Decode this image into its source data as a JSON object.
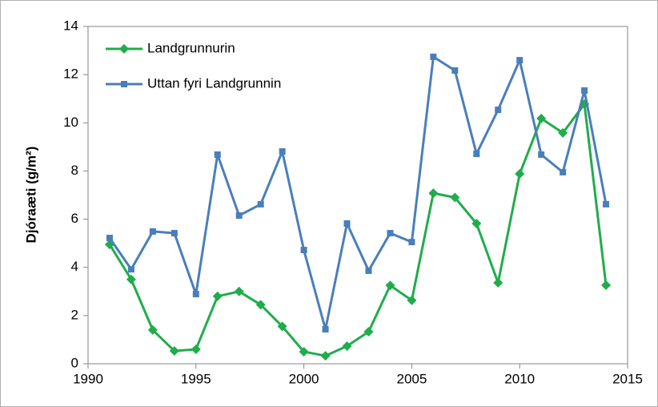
{
  "chart_data": {
    "type": "line",
    "y_label": "Djóraæti (g/m²)",
    "x": [
      1991,
      1992,
      1993,
      1994,
      1995,
      1996,
      1997,
      1998,
      1999,
      2000,
      2001,
      2002,
      2003,
      2004,
      2005,
      2006,
      2007,
      2008,
      2009,
      2010,
      2011,
      2012,
      2013,
      2014
    ],
    "series": [
      {
        "name": "Landgrunnurin",
        "color": "#1fad4b",
        "marker": "diamond",
        "values": [
          4.95,
          3.5,
          1.4,
          0.53,
          0.6,
          2.8,
          3.0,
          2.45,
          1.55,
          0.5,
          0.33,
          0.73,
          1.33,
          3.25,
          2.63,
          7.08,
          6.9,
          5.82,
          3.36,
          7.88,
          10.18,
          9.58,
          10.78,
          3.26
        ]
      },
      {
        "name": "Uttan fyri Landgrunnin",
        "color": "#4a7ebb",
        "marker": "square",
        "values": [
          5.22,
          3.92,
          5.49,
          5.42,
          2.89,
          8.68,
          6.15,
          6.62,
          8.81,
          4.72,
          1.43,
          5.82,
          3.86,
          5.42,
          5.05,
          12.74,
          12.17,
          8.71,
          10.54,
          12.6,
          8.68,
          7.95,
          11.34,
          6.62
        ]
      }
    ],
    "xlim": [
      1990,
      2015
    ],
    "xticks": [
      1990,
      1995,
      2000,
      2005,
      2010,
      2015
    ],
    "ylim": [
      0,
      14
    ],
    "yticks": [
      0,
      2,
      4,
      6,
      8,
      10,
      12,
      14
    ],
    "grid": false,
    "legend": "upper left"
  }
}
